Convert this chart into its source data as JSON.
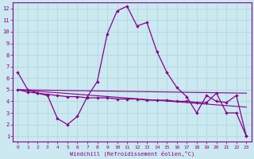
{
  "xlabel": "Windchill (Refroidissement éolien,°C)",
  "bg_color": "#cce8f0",
  "line_color": "#880088",
  "grid_color": "#aadddd",
  "xlim": [
    -0.5,
    23.5
  ],
  "ylim": [
    0.5,
    12.5
  ],
  "xticks": [
    0,
    1,
    2,
    3,
    4,
    5,
    6,
    7,
    8,
    9,
    10,
    11,
    12,
    13,
    14,
    15,
    16,
    17,
    18,
    19,
    20,
    21,
    22,
    23
  ],
  "yticks": [
    1,
    2,
    3,
    4,
    5,
    6,
    7,
    8,
    9,
    10,
    11,
    12
  ],
  "curve1_x": [
    0,
    1,
    2,
    3,
    4,
    5,
    6,
    7,
    8,
    9,
    10,
    11,
    12,
    13,
    14,
    15,
    16,
    17,
    18,
    19,
    20,
    21,
    22,
    23
  ],
  "curve1_y": [
    6.5,
    5.0,
    4.7,
    4.5,
    2.5,
    2.0,
    2.7,
    4.4,
    5.7,
    9.8,
    11.8,
    12.2,
    10.5,
    10.8,
    8.3,
    6.5,
    5.2,
    4.4,
    3.0,
    4.5,
    4.0,
    3.9,
    4.5,
    1.0
  ],
  "curve2_x": [
    0,
    1,
    2,
    3,
    4,
    5,
    6,
    7,
    8,
    9,
    10,
    11,
    12,
    13,
    14,
    15,
    16,
    17,
    18,
    19,
    20,
    21,
    22,
    23
  ],
  "curve2_y": [
    5.0,
    4.8,
    4.7,
    4.6,
    4.5,
    4.4,
    4.4,
    4.3,
    4.3,
    4.3,
    4.2,
    4.2,
    4.2,
    4.1,
    4.1,
    4.1,
    4.0,
    4.0,
    3.9,
    3.9,
    4.7,
    3.0,
    3.0,
    1.0
  ],
  "curve3_x": [
    0,
    23
  ],
  "curve3_y": [
    5.0,
    4.7
  ],
  "curve4_x": [
    0,
    23
  ],
  "curve4_y": [
    5.0,
    3.5
  ]
}
